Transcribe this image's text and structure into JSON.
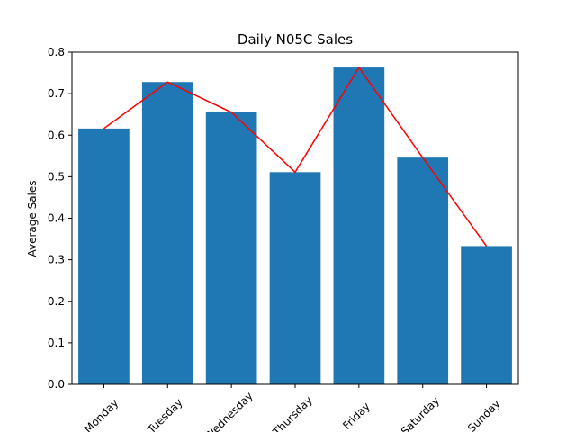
{
  "chart_data": {
    "type": "bar",
    "title": "Daily N05C Sales",
    "xlabel": "",
    "ylabel": "Average Sales",
    "categories": [
      "Monday",
      "Tuesday",
      "Wednesday",
      "Thursday",
      "Friday",
      "Saturday",
      "Sunday"
    ],
    "series": [
      {
        "kind": "bar",
        "values": [
          0.616,
          0.728,
          0.655,
          0.511,
          0.763,
          0.546,
          0.333
        ]
      },
      {
        "kind": "line",
        "values": [
          0.616,
          0.728,
          0.655,
          0.511,
          0.763,
          0.546,
          0.333
        ]
      }
    ],
    "ylim": [
      0,
      0.8
    ],
    "yticks": [
      "0.0",
      "0.1",
      "0.2",
      "0.3",
      "0.4",
      "0.5",
      "0.6",
      "0.7",
      "0.8"
    ],
    "xtick_rotation_deg": 45,
    "grid": false,
    "colors": {
      "bar": "#1f77b4",
      "line": "#ff0000",
      "axis": "#000000"
    }
  }
}
